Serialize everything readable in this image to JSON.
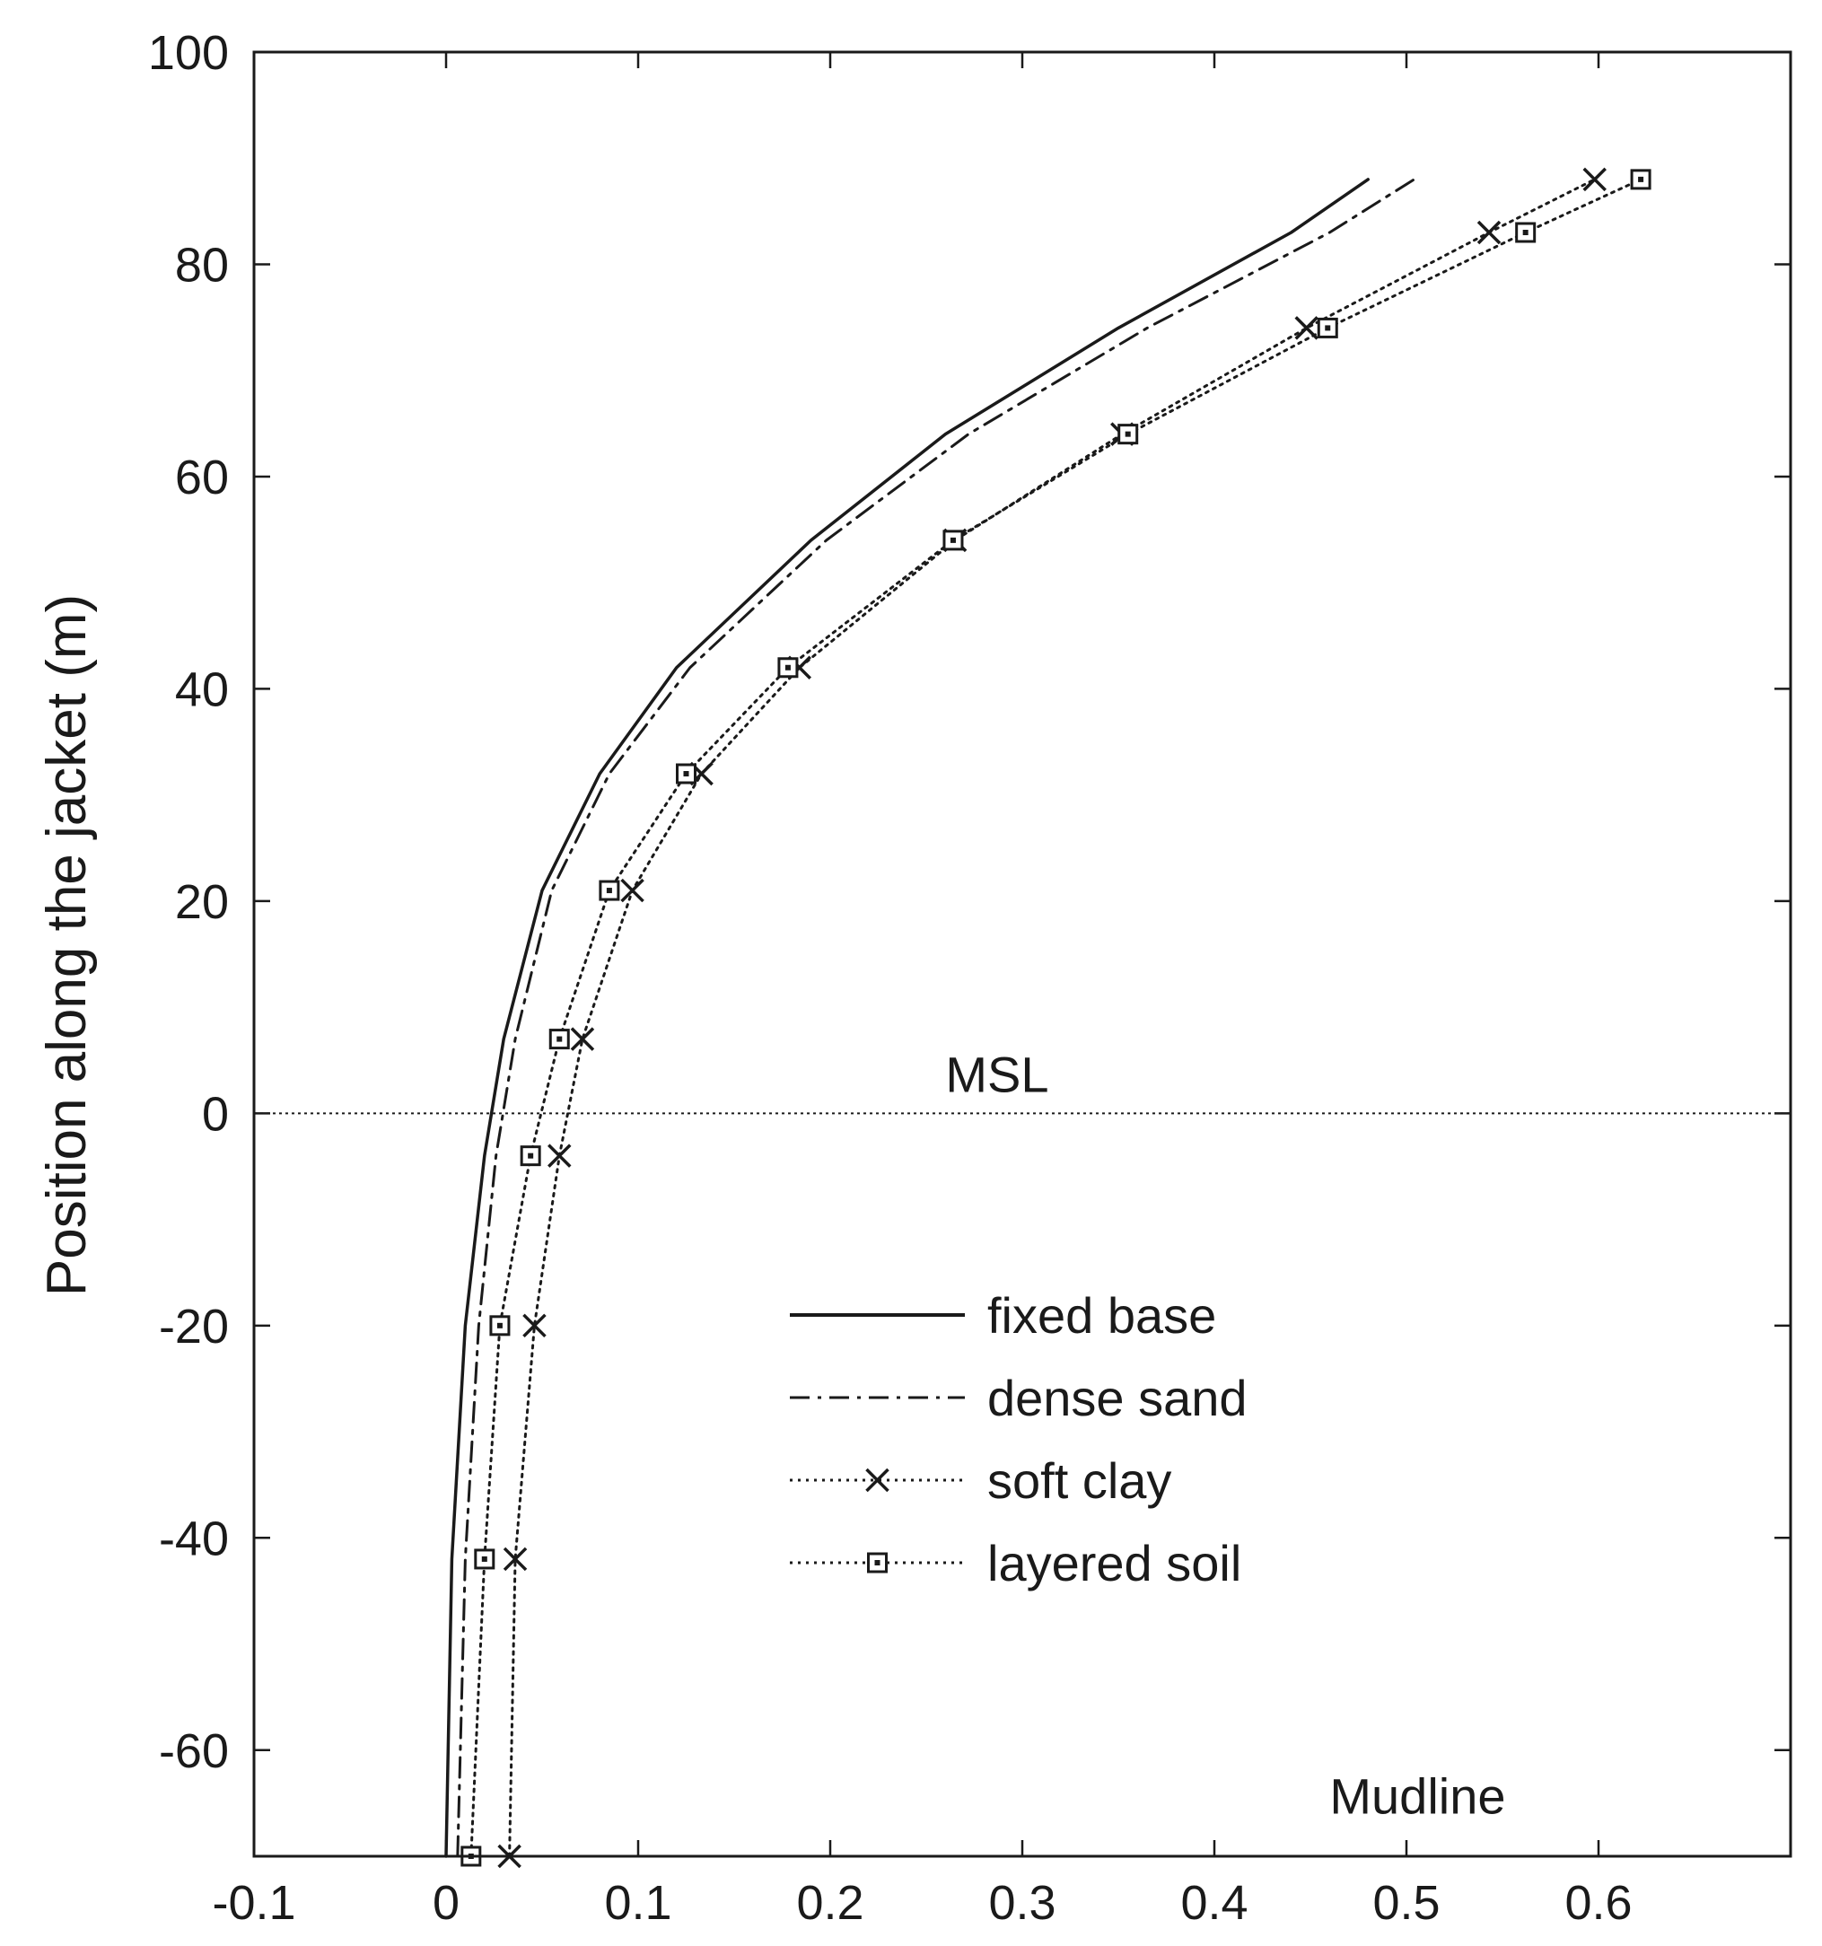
{
  "chart_data": {
    "type": "line",
    "title": "",
    "xlabel": "",
    "ylabel": "Position along the jacket (m)",
    "xlim": [
      -0.1,
      0.7
    ],
    "ylim": [
      -70,
      100
    ],
    "xticks": [
      -0.1,
      0,
      0.1,
      0.2,
      0.3,
      0.4,
      0.5,
      0.6
    ],
    "xtick_labels": [
      "-0.1",
      "0",
      "0.1",
      "0.2",
      "0.3",
      "0.4",
      "0.5",
      "0.6"
    ],
    "yticks": [
      -60,
      -40,
      -20,
      0,
      20,
      40,
      60,
      80,
      100
    ],
    "ytick_labels": [
      "-60",
      "-40",
      "-20",
      "0",
      "20",
      "40",
      "60",
      "80",
      "100"
    ],
    "grid": false,
    "legend_position": "lower-right",
    "annotations": [
      {
        "text": "MSL",
        "x": 0.26,
        "y": 2
      },
      {
        "text": "Mudline",
        "x": 0.46,
        "y": -66
      }
    ],
    "reference_lines": [
      {
        "orientation": "horizontal",
        "y": 0,
        "style": "dotted",
        "label": "MSL"
      }
    ],
    "series": [
      {
        "name": "fixed base",
        "style": "solid",
        "marker": "none",
        "x": [
          0.0,
          0.003,
          0.01,
          0.02,
          0.03,
          0.05,
          0.08,
          0.12,
          0.19,
          0.26,
          0.35,
          0.44,
          0.48
        ],
        "y": [
          -70,
          -42,
          -20,
          -4,
          7,
          21,
          32,
          42,
          54,
          64,
          74,
          83,
          88
        ]
      },
      {
        "name": "dense sand",
        "style": "dashdot",
        "marker": "none",
        "x": [
          0.006,
          0.01,
          0.017,
          0.026,
          0.036,
          0.055,
          0.085,
          0.127,
          0.198,
          0.272,
          0.365,
          0.46,
          0.504
        ],
        "y": [
          -70,
          -42,
          -20,
          -4,
          7,
          21,
          32,
          42,
          54,
          64,
          74,
          83,
          88
        ]
      },
      {
        "name": "soft clay",
        "style": "dotted",
        "marker": "x",
        "x": [
          0.033,
          0.036,
          0.046,
          0.059,
          0.071,
          0.097,
          0.133,
          0.184,
          0.265,
          0.352,
          0.448,
          0.543,
          0.598
        ],
        "y": [
          -70,
          -42,
          -20,
          -4,
          7,
          21,
          32,
          42,
          54,
          64,
          74,
          83,
          88
        ]
      },
      {
        "name": "layered soil",
        "style": "dotted",
        "marker": "square",
        "x": [
          0.013,
          0.02,
          0.028,
          0.044,
          0.059,
          0.085,
          0.125,
          0.178,
          0.264,
          0.355,
          0.459,
          0.562,
          0.622
        ],
        "y": [
          -70,
          -42,
          -20,
          -4,
          7,
          21,
          32,
          42,
          54,
          64,
          74,
          83,
          88
        ]
      }
    ]
  }
}
